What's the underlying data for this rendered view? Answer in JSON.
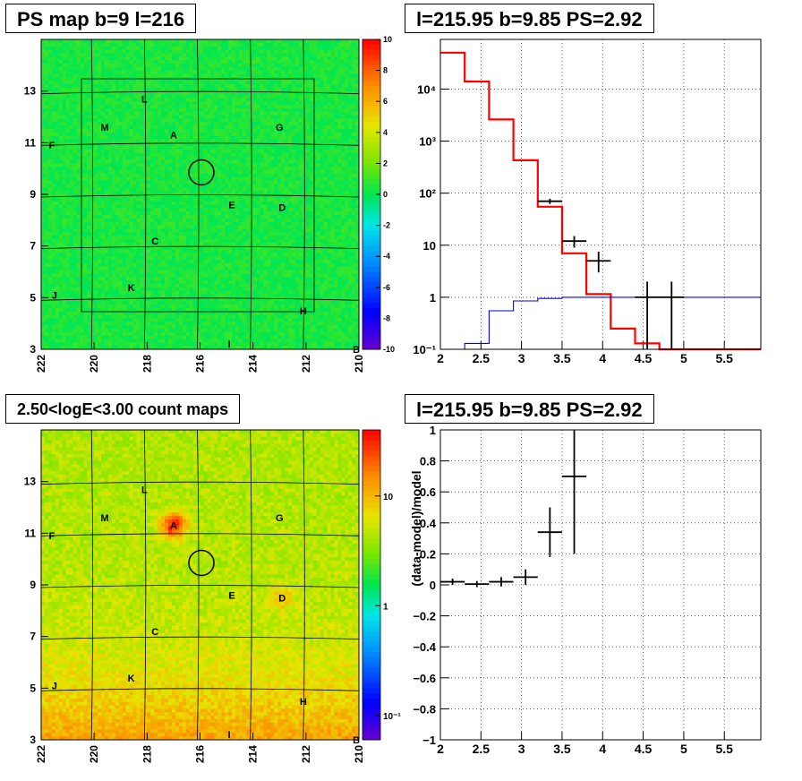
{
  "titles": {
    "ps_map": "PS map b=9 l=216",
    "spectrum": "l=215.95 b=9.85 PS=2.92",
    "count_map": "2.50<logE<3.00 count maps",
    "residual": "l=215.95 b=9.85 PS=2.92"
  },
  "colors": {
    "model_line": "#ff0000",
    "background_line": "#0000ff",
    "data_points": "#000000"
  },
  "chart_data": [
    {
      "type": "heatmap",
      "title": "PS map b=9 l=216",
      "x_ticks": [
        "222",
        "220",
        "218",
        "216",
        "214",
        "212",
        "210"
      ],
      "x_tick_values": [
        222,
        220,
        218,
        216,
        214,
        212,
        210
      ],
      "y_ticks": [
        "3",
        "5",
        "7",
        "9",
        "11",
        "13"
      ],
      "y_tick_values": [
        3,
        5,
        7,
        9,
        11,
        13
      ],
      "xlim": [
        222,
        210
      ],
      "ylim": [
        3,
        15
      ],
      "colorbar_ticks": [
        "10",
        "8",
        "6",
        "4",
        "2",
        "0",
        "-2",
        "-4",
        "-6",
        "-8",
        "-10"
      ],
      "colorbar_range": [
        -10,
        10
      ],
      "marker": {
        "l": 215.95,
        "b": 9.85
      },
      "sources": [
        {
          "label": "L",
          "l": 218.1,
          "b": 12.7
        },
        {
          "label": "M",
          "l": 219.6,
          "b": 11.6
        },
        {
          "label": "A",
          "l": 217.0,
          "b": 11.3
        },
        {
          "label": "G",
          "l": 213.0,
          "b": 11.6
        },
        {
          "label": "F",
          "l": 221.6,
          "b": 10.9
        },
        {
          "label": "E",
          "l": 214.8,
          "b": 8.6
        },
        {
          "label": "D",
          "l": 212.9,
          "b": 8.5
        },
        {
          "label": "C",
          "l": 217.7,
          "b": 7.2
        },
        {
          "label": "K",
          "l": 218.6,
          "b": 5.4
        },
        {
          "label": "J",
          "l": 221.5,
          "b": 5.1
        },
        {
          "label": "H",
          "l": 212.1,
          "b": 4.5
        },
        {
          "label": "I",
          "l": 214.9,
          "b": 3.2
        },
        {
          "label": "B",
          "l": 210.1,
          "b": 3.0
        }
      ]
    },
    {
      "type": "line",
      "title": "l=215.95 b=9.85 PS=2.92",
      "log_y": true,
      "xlim": [
        2,
        5.95
      ],
      "ylim": [
        0.1,
        90000
      ],
      "x_ticks": [
        "2",
        "2.5",
        "3",
        "3.5",
        "4",
        "4.5",
        "5",
        "5.5"
      ],
      "x_tick_values": [
        2,
        2.5,
        3,
        3.5,
        4,
        4.5,
        5,
        5.5
      ],
      "y_ticks": [
        "10⁻¹",
        "1",
        "10",
        "10²",
        "10³",
        "10⁴"
      ],
      "y_tick_values": [
        0.1,
        1,
        10,
        100,
        1000,
        10000
      ],
      "grid": true,
      "series": [
        {
          "style": "step-red",
          "edges": [
            2.0,
            2.3,
            2.6,
            2.9,
            3.2,
            3.5,
            3.8,
            4.1,
            4.4,
            4.7,
            5.95
          ],
          "values": [
            50000,
            14000,
            2600,
            430,
            55,
            7,
            1.15,
            0.25,
            0.13,
            0.1
          ]
        },
        {
          "style": "step-blue",
          "edges": [
            2.0,
            2.3,
            2.6,
            2.9,
            3.2,
            3.5,
            3.8,
            4.1,
            4.4,
            4.7,
            5.0,
            5.95
          ],
          "values": [
            0.1,
            0.13,
            0.55,
            0.85,
            0.95,
            1.0,
            1.0,
            1.0,
            1.0,
            1.0,
            1.0
          ]
        },
        {
          "style": "points",
          "points": [
            {
              "x": 3.35,
              "y": 70,
              "xerr": 0.15,
              "ylo": 62,
              "yhi": 78
            },
            {
              "x": 3.65,
              "y": 12,
              "xerr": 0.15,
              "ylo": 9,
              "yhi": 15
            },
            {
              "x": 3.95,
              "y": 5,
              "xerr": 0.15,
              "ylo": 3,
              "yhi": 7.5
            },
            {
              "x": 4.55,
              "y": 1,
              "xerr": 0.15,
              "ylo": 0.1,
              "yhi": 2
            },
            {
              "x": 4.85,
              "y": 1,
              "xerr": 0.15,
              "ylo": 0.1,
              "yhi": 2
            }
          ]
        }
      ]
    },
    {
      "type": "heatmap",
      "title": "2.50<logE<3.00 count maps",
      "x_ticks": [
        "222",
        "220",
        "218",
        "216",
        "214",
        "212",
        "210"
      ],
      "x_tick_values": [
        222,
        220,
        218,
        216,
        214,
        212,
        210
      ],
      "y_ticks": [
        "3",
        "5",
        "7",
        "9",
        "11",
        "13"
      ],
      "y_tick_values": [
        3,
        5,
        7,
        9,
        11,
        13
      ],
      "xlim": [
        222,
        210
      ],
      "ylim": [
        3,
        15
      ],
      "colorbar_log": true,
      "colorbar_ticks": [
        "10",
        "1",
        "10⁻¹"
      ],
      "colorbar_tick_values": [
        10,
        1,
        0.1
      ],
      "marker": {
        "l": 215.95,
        "b": 9.85
      },
      "sources": [
        {
          "label": "L",
          "l": 218.1,
          "b": 12.7
        },
        {
          "label": "M",
          "l": 219.6,
          "b": 11.6
        },
        {
          "label": "A",
          "l": 217.0,
          "b": 11.3
        },
        {
          "label": "G",
          "l": 213.0,
          "b": 11.6
        },
        {
          "label": "F",
          "l": 221.6,
          "b": 10.9
        },
        {
          "label": "E",
          "l": 214.8,
          "b": 8.6
        },
        {
          "label": "D",
          "l": 212.9,
          "b": 8.5
        },
        {
          "label": "C",
          "l": 217.7,
          "b": 7.2
        },
        {
          "label": "K",
          "l": 218.6,
          "b": 5.4
        },
        {
          "label": "J",
          "l": 221.5,
          "b": 5.1
        },
        {
          "label": "H",
          "l": 212.1,
          "b": 4.5
        },
        {
          "label": "I",
          "l": 214.9,
          "b": 3.2
        },
        {
          "label": "B",
          "l": 210.1,
          "b": 3.0
        }
      ]
    },
    {
      "type": "scatter",
      "title": "l=215.95 b=9.85 PS=2.92",
      "ylabel": "(data-model)/model",
      "xlim": [
        2,
        5.95
      ],
      "ylim": [
        -1,
        1
      ],
      "x_ticks": [
        "2",
        "2.5",
        "3",
        "3.5",
        "4",
        "4.5",
        "5",
        "5.5"
      ],
      "x_tick_values": [
        2,
        2.5,
        3,
        3.5,
        4,
        4.5,
        5,
        5.5
      ],
      "y_ticks": [
        "−1",
        "−0.8",
        "−0.6",
        "−0.4",
        "−0.2",
        "0",
        "0.2",
        "0.4",
        "0.6",
        "0.8",
        "1"
      ],
      "y_tick_values": [
        -1,
        -0.8,
        -0.6,
        -0.4,
        -0.2,
        0,
        0.2,
        0.4,
        0.6,
        0.8,
        1
      ],
      "grid": true,
      "points": [
        {
          "x": 2.15,
          "y": 0.02,
          "xerr": 0.15,
          "yerr": 0.02
        },
        {
          "x": 2.45,
          "y": 0.005,
          "xerr": 0.15,
          "yerr": 0.02
        },
        {
          "x": 2.75,
          "y": 0.02,
          "xerr": 0.15,
          "yerr": 0.03
        },
        {
          "x": 3.05,
          "y": 0.05,
          "xerr": 0.15,
          "yerr": 0.05
        },
        {
          "x": 3.35,
          "y": 0.34,
          "xerr": 0.15,
          "yerr": 0.16
        },
        {
          "x": 3.65,
          "y": 0.7,
          "xerr": 0.15,
          "yerr": 0.5
        }
      ]
    }
  ]
}
